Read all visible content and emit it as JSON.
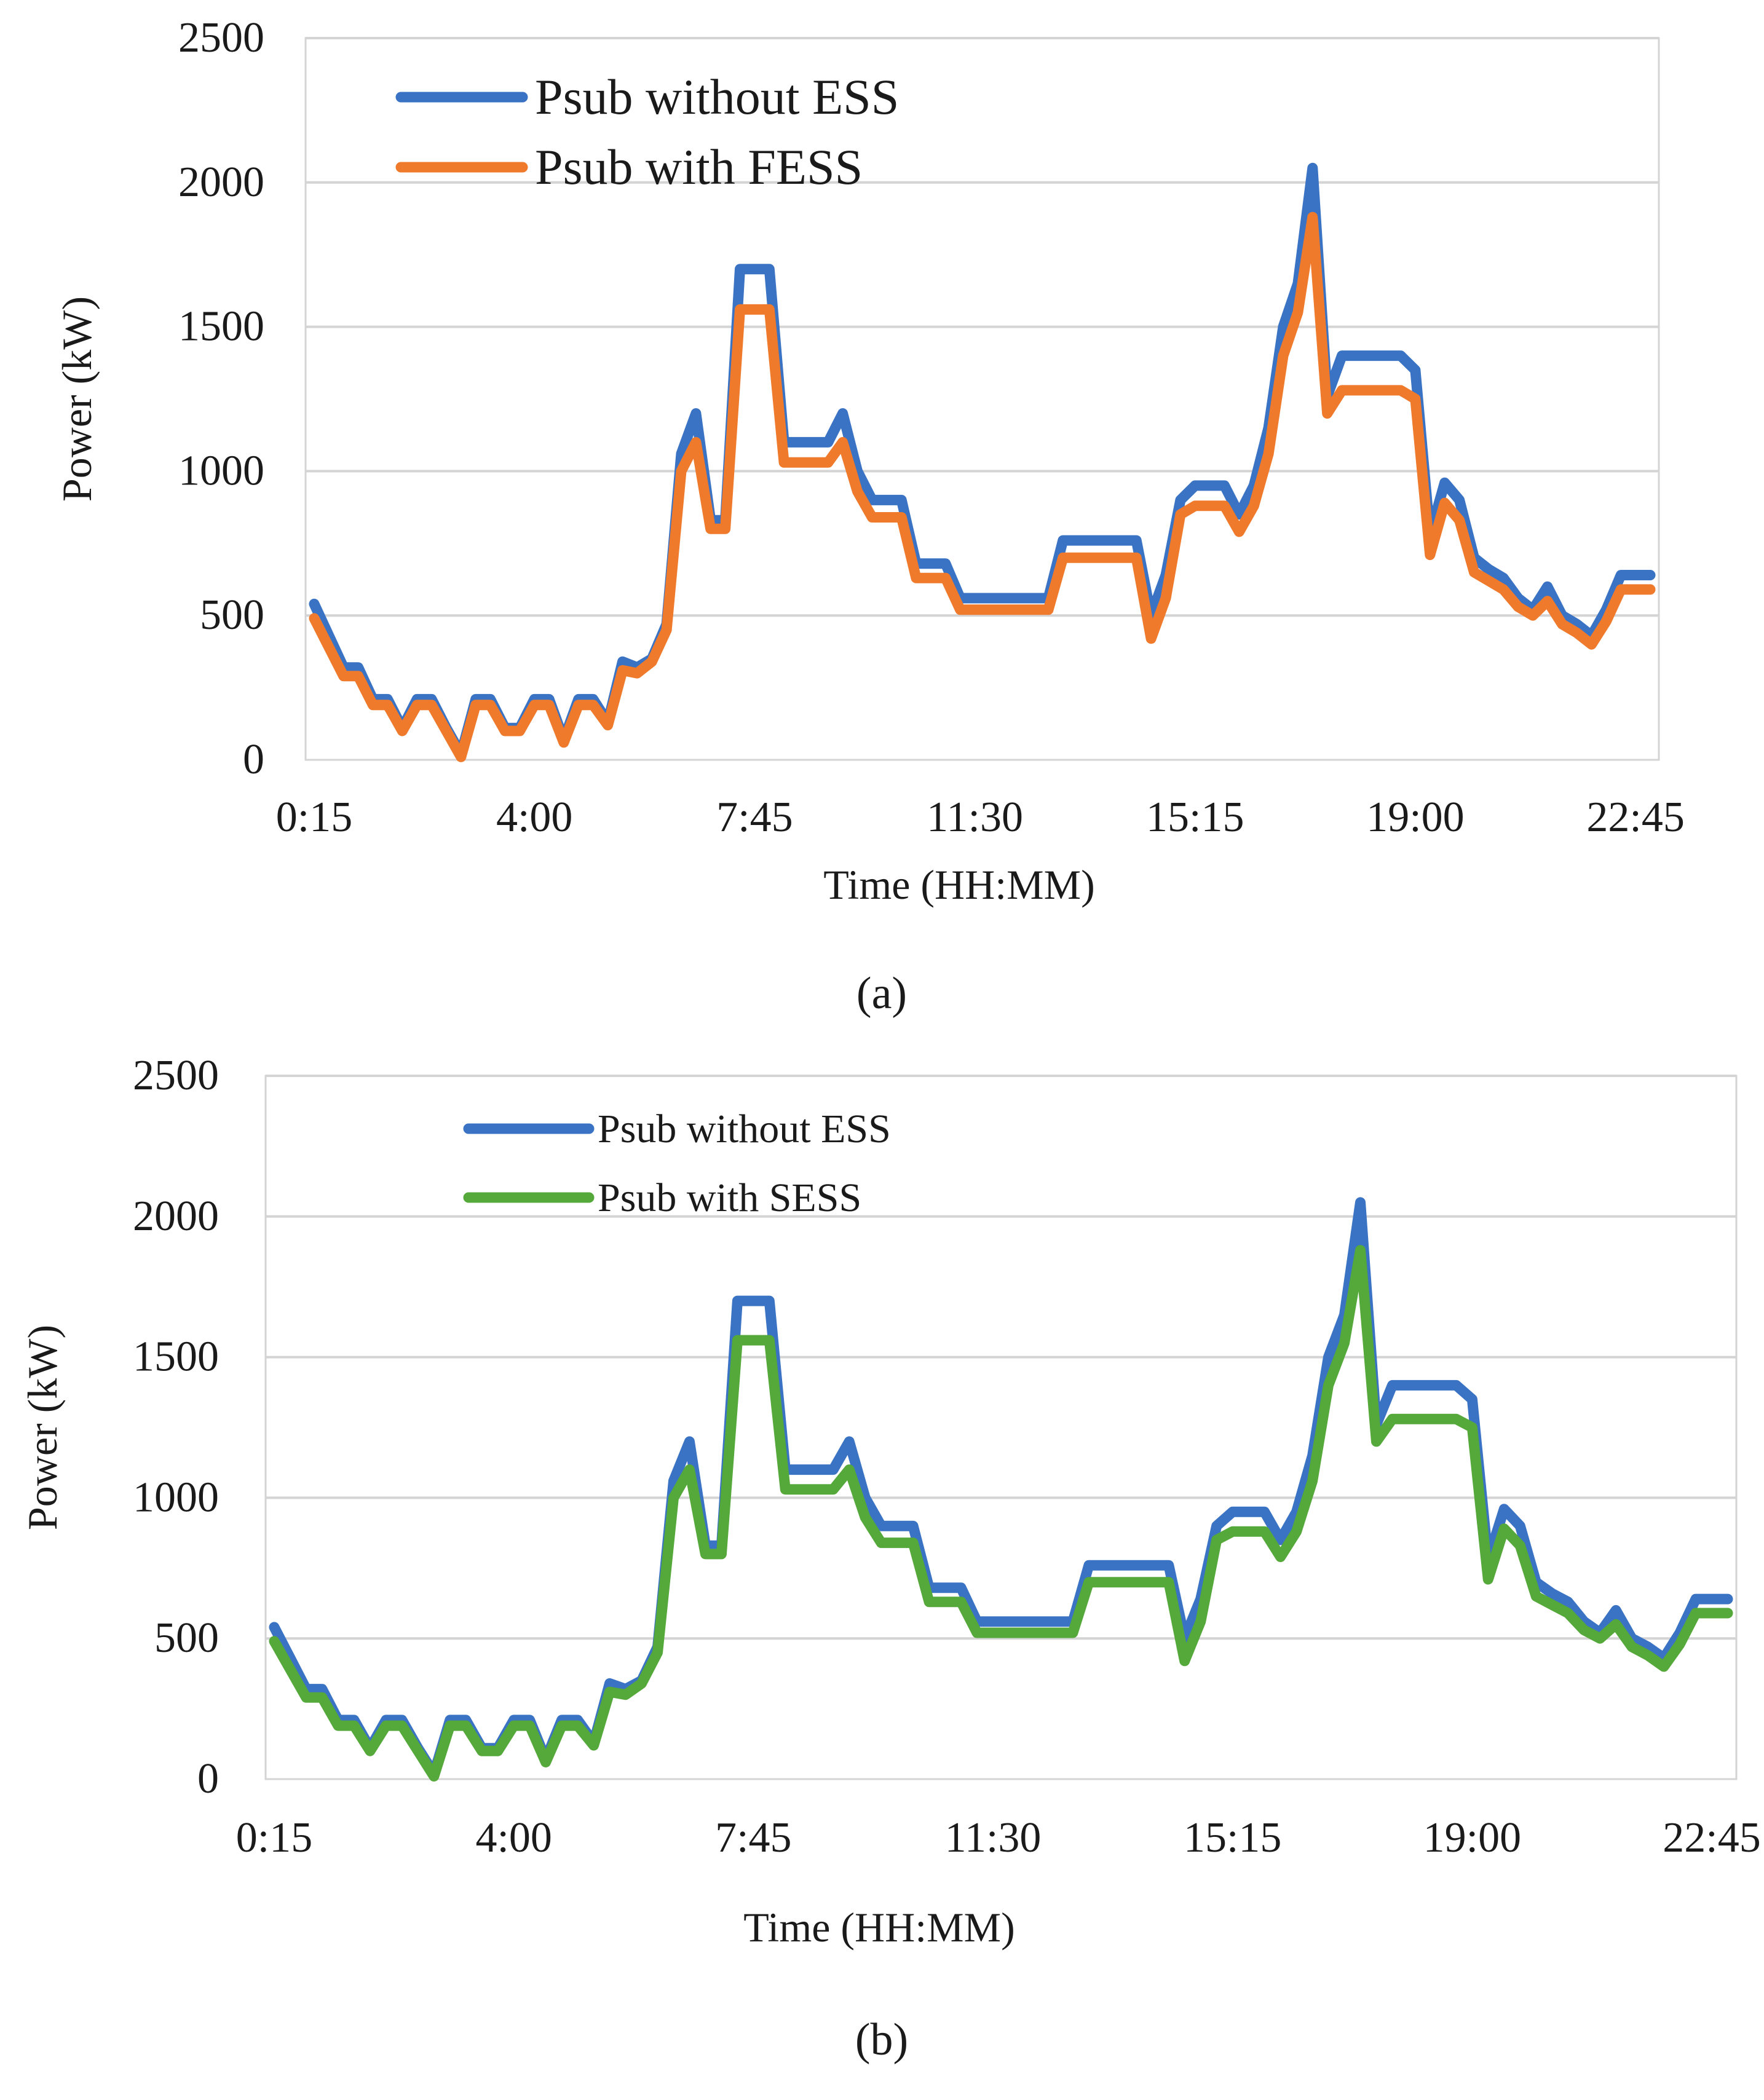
{
  "colors": {
    "background": "#ffffff",
    "gridline": "#d4d4d4",
    "text": "#1a1a1a",
    "without_ess": "#3a73c4",
    "fess": "#f07a2c",
    "sess": "#55a83a"
  },
  "chart_data": [
    {
      "type": "line",
      "panel_label": "(a)",
      "title": "",
      "xlabel": "Time (HH:MM)",
      "ylabel": "Power (kW)",
      "ylim": [
        0,
        2500
      ],
      "yticks": [
        "0",
        "500",
        "1000",
        "1500",
        "2000",
        "2500"
      ],
      "xtick_labels": [
        "0:15",
        "4:00",
        "7:45",
        "11:30",
        "15:15",
        "19:00",
        "22:45"
      ],
      "xtick_indices": [
        0,
        15,
        30,
        45,
        60,
        75,
        90
      ],
      "grid": true,
      "legend_position": "top-left",
      "series": [
        {
          "name": "Psub without ESS",
          "color": "#3a73c4",
          "values": [
            540,
            430,
            320,
            320,
            210,
            210,
            110,
            210,
            210,
            110,
            20,
            210,
            210,
            110,
            110,
            210,
            210,
            70,
            210,
            210,
            130,
            340,
            320,
            350,
            470,
            1060,
            1200,
            830,
            830,
            1700,
            1700,
            1700,
            1100,
            1100,
            1100,
            1100,
            1200,
            1000,
            900,
            900,
            900,
            680,
            680,
            680,
            560,
            560,
            560,
            560,
            560,
            560,
            560,
            760,
            760,
            760,
            760,
            760,
            760,
            500,
            640,
            900,
            950,
            950,
            950,
            850,
            950,
            1150,
            1500,
            1650,
            2050,
            1260,
            1400,
            1400,
            1400,
            1400,
            1400,
            1350,
            780,
            960,
            900,
            700,
            660,
            630,
            560,
            520,
            600,
            500,
            470,
            430,
            520,
            640,
            640,
            640
          ]
        },
        {
          "name": "Psub with FESS",
          "color": "#f07a2c",
          "values": [
            490,
            390,
            290,
            290,
            190,
            190,
            100,
            190,
            190,
            100,
            10,
            190,
            190,
            100,
            100,
            190,
            190,
            60,
            190,
            190,
            120,
            310,
            300,
            340,
            450,
            1000,
            1100,
            800,
            800,
            1560,
            1560,
            1560,
            1030,
            1030,
            1030,
            1030,
            1100,
            930,
            840,
            840,
            840,
            630,
            630,
            630,
            520,
            520,
            520,
            520,
            520,
            520,
            520,
            700,
            700,
            700,
            700,
            700,
            700,
            420,
            560,
            850,
            880,
            880,
            880,
            790,
            880,
            1060,
            1400,
            1550,
            1880,
            1200,
            1280,
            1280,
            1280,
            1280,
            1280,
            1250,
            710,
            890,
            830,
            650,
            620,
            590,
            530,
            500,
            550,
            470,
            440,
            400,
            480,
            590,
            590,
            590
          ]
        }
      ]
    },
    {
      "type": "line",
      "panel_label": "(b)",
      "title": "",
      "xlabel": "Time (HH:MM)",
      "ylabel": "Power (kW)",
      "ylim": [
        0,
        2500
      ],
      "yticks": [
        "0",
        "500",
        "1000",
        "1500",
        "2000",
        "2500"
      ],
      "xtick_labels": [
        "0:15",
        "4:00",
        "7:45",
        "11:30",
        "15:15",
        "19:00",
        "22:45"
      ],
      "xtick_indices": [
        0,
        15,
        30,
        45,
        60,
        75,
        90
      ],
      "grid": true,
      "legend_position": "top-left",
      "series": [
        {
          "name": "Psub without ESS",
          "color": "#3a73c4",
          "values": [
            540,
            430,
            320,
            320,
            210,
            210,
            110,
            210,
            210,
            110,
            20,
            210,
            210,
            110,
            110,
            210,
            210,
            70,
            210,
            210,
            130,
            340,
            320,
            350,
            470,
            1060,
            1200,
            830,
            830,
            1700,
            1700,
            1700,
            1100,
            1100,
            1100,
            1100,
            1200,
            1000,
            900,
            900,
            900,
            680,
            680,
            680,
            560,
            560,
            560,
            560,
            560,
            560,
            560,
            760,
            760,
            760,
            760,
            760,
            760,
            500,
            640,
            900,
            950,
            950,
            950,
            850,
            950,
            1150,
            1500,
            1650,
            2050,
            1260,
            1400,
            1400,
            1400,
            1400,
            1400,
            1350,
            780,
            960,
            900,
            700,
            660,
            630,
            560,
            520,
            600,
            500,
            470,
            430,
            520,
            640,
            640,
            640
          ]
        },
        {
          "name": "Psub with SESS",
          "color": "#55a83a",
          "values": [
            490,
            390,
            290,
            290,
            190,
            190,
            100,
            190,
            190,
            100,
            10,
            190,
            190,
            100,
            100,
            190,
            190,
            60,
            190,
            190,
            120,
            310,
            300,
            340,
            450,
            1000,
            1100,
            800,
            800,
            1560,
            1560,
            1560,
            1030,
            1030,
            1030,
            1030,
            1100,
            930,
            840,
            840,
            840,
            630,
            630,
            630,
            520,
            520,
            520,
            520,
            520,
            520,
            520,
            700,
            700,
            700,
            700,
            700,
            700,
            420,
            560,
            850,
            880,
            880,
            880,
            790,
            880,
            1060,
            1400,
            1550,
            1880,
            1200,
            1280,
            1280,
            1280,
            1280,
            1280,
            1250,
            710,
            890,
            830,
            650,
            620,
            590,
            530,
            500,
            550,
            470,
            440,
            400,
            480,
            590,
            590,
            590
          ]
        }
      ]
    }
  ]
}
